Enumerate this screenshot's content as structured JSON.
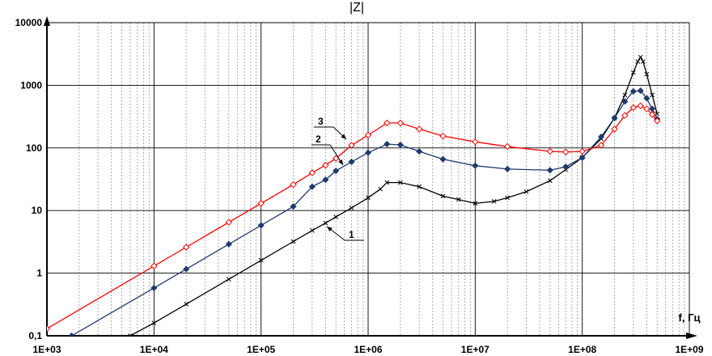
{
  "chart_data": {
    "type": "line",
    "title": "|Z|",
    "xlabel": "f, Гц",
    "ylabel": "",
    "x_scale": "log",
    "y_scale": "log",
    "xlim": [
      1000,
      1000000000
    ],
    "ylim": [
      0.1,
      10000
    ],
    "grid": true,
    "x_ticks": [
      "1E+03",
      "1E+04",
      "1E+05",
      "1E+06",
      "1E+07",
      "1E+08",
      "1E+09"
    ],
    "y_ticks": [
      "0,1",
      "1",
      "10",
      "100",
      "1000",
      "10000"
    ],
    "x_tick_values": [
      1000,
      10000,
      100000,
      1000000,
      10000000,
      100000000,
      1000000000
    ],
    "y_tick_values": [
      0.1,
      1,
      10,
      100,
      1000,
      10000
    ],
    "series": [
      {
        "name": "1",
        "color": "#000000",
        "marker": "x",
        "x": [
          6000,
          10000,
          20000,
          50000,
          100000,
          200000,
          300000,
          400000,
          500000,
          700000,
          1000000,
          1300000,
          1500000,
          2000000,
          3000000,
          5000000,
          7000000,
          10000000,
          15000000,
          20000000,
          30000000,
          50000000,
          70000000,
          100000000,
          150000000,
          200000000,
          250000000,
          300000000,
          330000000,
          350000000,
          370000000,
          400000000,
          450000000,
          500000000
        ],
        "y": [
          0.1,
          0.16,
          0.32,
          0.8,
          1.6,
          3.2,
          4.8,
          6.3,
          7.9,
          11,
          16,
          22,
          28,
          28,
          24,
          17,
          15,
          13,
          14,
          16,
          20,
          30,
          45,
          70,
          140,
          300,
          700,
          1600,
          2400,
          2800,
          2400,
          1500,
          700,
          350
        ]
      },
      {
        "name": "2",
        "color": "#1f3a6e",
        "marker": "diamond-filled",
        "x": [
          1700,
          10000,
          20000,
          50000,
          100000,
          200000,
          300000,
          400000,
          500000,
          700000,
          1000000,
          1500000,
          2000000,
          3000000,
          5000000,
          10000000,
          20000000,
          50000000,
          70000000,
          100000000,
          150000000,
          200000000,
          250000000,
          300000000,
          350000000,
          400000000,
          450000000,
          500000000
        ],
        "y": [
          0.1,
          0.58,
          1.16,
          2.9,
          5.8,
          11.6,
          24,
          31,
          43,
          60,
          84,
          115,
          112,
          88,
          66,
          52,
          46,
          44,
          50,
          70,
          150,
          300,
          550,
          800,
          820,
          620,
          420,
          290
        ]
      },
      {
        "name": "3",
        "color": "#ff0000",
        "marker": "diamond-open",
        "x": [
          1000,
          10000,
          20000,
          50000,
          100000,
          200000,
          300000,
          400000,
          500000,
          700000,
          1000000,
          1500000,
          2000000,
          3000000,
          5000000,
          10000000,
          20000000,
          50000000,
          70000000,
          100000000,
          150000000,
          200000000,
          250000000,
          300000000,
          350000000,
          400000000,
          450000000,
          500000000
        ],
        "y": [
          0.13,
          1.3,
          2.6,
          6.5,
          13,
          26,
          40,
          53,
          68,
          110,
          160,
          250,
          250,
          200,
          155,
          125,
          105,
          88,
          86,
          88,
          110,
          200,
          330,
          440,
          470,
          420,
          340,
          270
        ]
      }
    ],
    "annotations": [
      "1",
      "2",
      "3"
    ]
  }
}
